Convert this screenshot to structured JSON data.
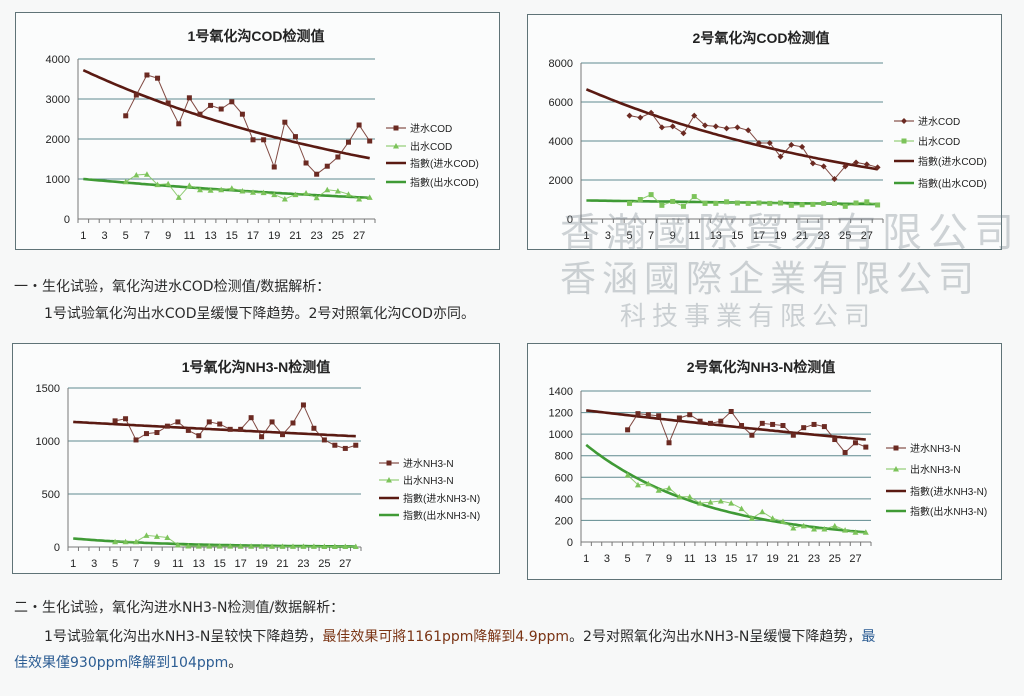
{
  "watermark": [
    "香瀚國際貿易有限公司",
    "香涵國際企業有限公司",
    "科技事業有限公司"
  ],
  "section1": {
    "heading": "一・生化试验，氧化沟进水COD检测值/数据解析：",
    "body": "1号试验氧化沟出水COD呈缓慢下降趋势。2号对照氧化沟COD亦同。"
  },
  "section2": {
    "heading": "二・生化试验，氧化沟进水NH3-N检测值/数据解析：",
    "body_a": "1号试验氧化沟出水NH3-N呈较快下降趋势，",
    "body_b": "最佳效果可將1161ppm降解到4.9ppm",
    "body_c": "。2号对照氧化沟出水NH3-N呈缓慢下降趋势，",
    "body_d": "最",
    "body_e": "佳效果僅930ppm降解到104ppm",
    "body_f": "。"
  },
  "colors": {
    "inflow": "#6b2a22",
    "outflow": "#7cc35a",
    "trend_in": "#5a1a12",
    "trend_out": "#3f9a35",
    "grid": "#5f8a8f",
    "highlight1": "#7a3414",
    "highlight2": "#2c5d93"
  },
  "chart_data": [
    {
      "type": "line",
      "title": "1号氧化沟COD检测值",
      "xlabel": "",
      "ylabel": "",
      "x_ticks": [
        "1",
        "3",
        "5",
        "7",
        "9",
        "11",
        "13",
        "15",
        "17",
        "19",
        "21",
        "23",
        "25",
        "27"
      ],
      "y_ticks": [
        0,
        1000,
        2000,
        3000,
        4000
      ],
      "ylim": [
        0,
        4000
      ],
      "x_range": [
        1,
        28
      ],
      "grid": true,
      "legend": "right",
      "in_marker": "square",
      "out_marker": "triangle",
      "series": [
        {
          "name": "进水COD",
          "x_start": 5,
          "values": [
            2580,
            3100,
            3600,
            3520,
            2900,
            2380,
            3030,
            2620,
            2840,
            2750,
            2930,
            2620,
            1980,
            1980,
            1300,
            2420,
            2060,
            1400,
            1120,
            1320,
            1550,
            1920,
            2350,
            1950
          ]
        },
        {
          "name": "出水COD",
          "x_start": 5,
          "values": [
            930,
            1100,
            1120,
            860,
            880,
            540,
            840,
            730,
            720,
            730,
            770,
            700,
            670,
            660,
            610,
            500,
            610,
            650,
            530,
            730,
            700,
            620,
            500,
            540
          ]
        }
      ],
      "trendlines": [
        {
          "name": "指數(进水COD)",
          "type": "exponential",
          "start": 3720,
          "end": 1520
        },
        {
          "name": "指數(出水COD)",
          "type": "exponential",
          "start": 1000,
          "end": 530
        }
      ]
    },
    {
      "type": "line",
      "title": "2号氧化沟COD检测值",
      "xlabel": "",
      "ylabel": "",
      "x_ticks": [
        "1",
        "3",
        "5",
        "7",
        "9",
        "11",
        "13",
        "15",
        "17",
        "19",
        "21",
        "23",
        "25",
        "27"
      ],
      "y_ticks": [
        0,
        2000,
        4000,
        6000,
        8000
      ],
      "ylim": [
        0,
        8000
      ],
      "x_range": [
        1,
        28
      ],
      "grid": true,
      "legend": "right",
      "in_marker": "diamond",
      "out_marker": "square",
      "series": [
        {
          "name": "进水COD",
          "x_start": 5,
          "values": [
            5300,
            5200,
            5450,
            4700,
            4750,
            4400,
            5300,
            4800,
            4750,
            4650,
            4700,
            4550,
            3900,
            3900,
            3200,
            3800,
            3700,
            2850,
            2700,
            2050,
            2700,
            2900,
            2800,
            2650
          ]
        },
        {
          "name": "出水COD",
          "x_start": 5,
          "values": [
            800,
            1000,
            1250,
            700,
            900,
            650,
            1150,
            800,
            800,
            880,
            820,
            800,
            820,
            800,
            820,
            700,
            730,
            750,
            800,
            800,
            650,
            820,
            880,
            720
          ]
        }
      ],
      "trendlines": [
        {
          "name": "指數(进水COD)",
          "type": "exponential",
          "start": 6650,
          "end": 2550
        },
        {
          "name": "指數(出水COD)",
          "type": "exponential",
          "start": 950,
          "end": 760
        }
      ]
    },
    {
      "type": "line",
      "title": "1号氧化沟NH3-N检测值",
      "xlabel": "",
      "ylabel": "",
      "x_ticks": [
        "1",
        "3",
        "5",
        "7",
        "9",
        "11",
        "13",
        "15",
        "17",
        "19",
        "21",
        "23",
        "25",
        "27"
      ],
      "y_ticks": [
        0,
        500,
        1000,
        1500
      ],
      "ylim": [
        0,
        1500
      ],
      "x_range": [
        1,
        28
      ],
      "grid": true,
      "legend": "right",
      "in_marker": "square",
      "out_marker": "triangle",
      "series": [
        {
          "name": "进水NH3-N",
          "x_start": 5,
          "values": [
            1190,
            1210,
            1010,
            1070,
            1080,
            1140,
            1180,
            1100,
            1050,
            1180,
            1160,
            1110,
            1110,
            1220,
            1040,
            1180,
            1060,
            1170,
            1340,
            1120,
            1010,
            960,
            930,
            960
          ]
        },
        {
          "name": "出水NH3-N",
          "x_start": 5,
          "values": [
            50,
            50,
            50,
            110,
            100,
            90,
            20,
            10,
            8,
            8,
            8,
            8,
            7,
            7,
            7,
            6,
            6,
            6,
            6,
            6,
            5,
            5,
            5,
            5
          ]
        }
      ],
      "trendlines": [
        {
          "name": "指數(进水NH3-N)",
          "type": "exponential",
          "start": 1180,
          "end": 1045
        },
        {
          "name": "指數(出水NH3-N)",
          "type": "exponential",
          "start": 80,
          "end": 5
        }
      ]
    },
    {
      "type": "line",
      "title": "2号氧化沟NH3-N检测值",
      "xlabel": "",
      "ylabel": "",
      "x_ticks": [
        "1",
        "3",
        "5",
        "7",
        "9",
        "11",
        "13",
        "15",
        "17",
        "19",
        "21",
        "23",
        "25",
        "27"
      ],
      "y_ticks": [
        0,
        200,
        400,
        600,
        800,
        1000,
        1200,
        1400
      ],
      "ylim": [
        0,
        1400
      ],
      "x_range": [
        1,
        28
      ],
      "grid": true,
      "legend": "right",
      "in_marker": "square",
      "out_marker": "triangle",
      "series": [
        {
          "name": "进水NH3-N",
          "x_start": 5,
          "values": [
            1040,
            1190,
            1180,
            1170,
            920,
            1150,
            1180,
            1120,
            1100,
            1120,
            1210,
            1080,
            990,
            1100,
            1090,
            1080,
            990,
            1060,
            1090,
            1070,
            950,
            830,
            920,
            880
          ]
        },
        {
          "name": "出水NH3-N",
          "x_start": 5,
          "values": [
            620,
            530,
            540,
            480,
            500,
            420,
            420,
            360,
            370,
            380,
            360,
            310,
            220,
            280,
            220,
            190,
            130,
            150,
            120,
            120,
            150,
            110,
            90,
            90
          ]
        }
      ],
      "trendlines": [
        {
          "name": "指數(进水NH3-N)",
          "type": "exponential",
          "start": 1220,
          "end": 950
        },
        {
          "name": "指數(出水NH3-N)",
          "type": "exponential",
          "start": 900,
          "end": 90
        }
      ]
    }
  ]
}
